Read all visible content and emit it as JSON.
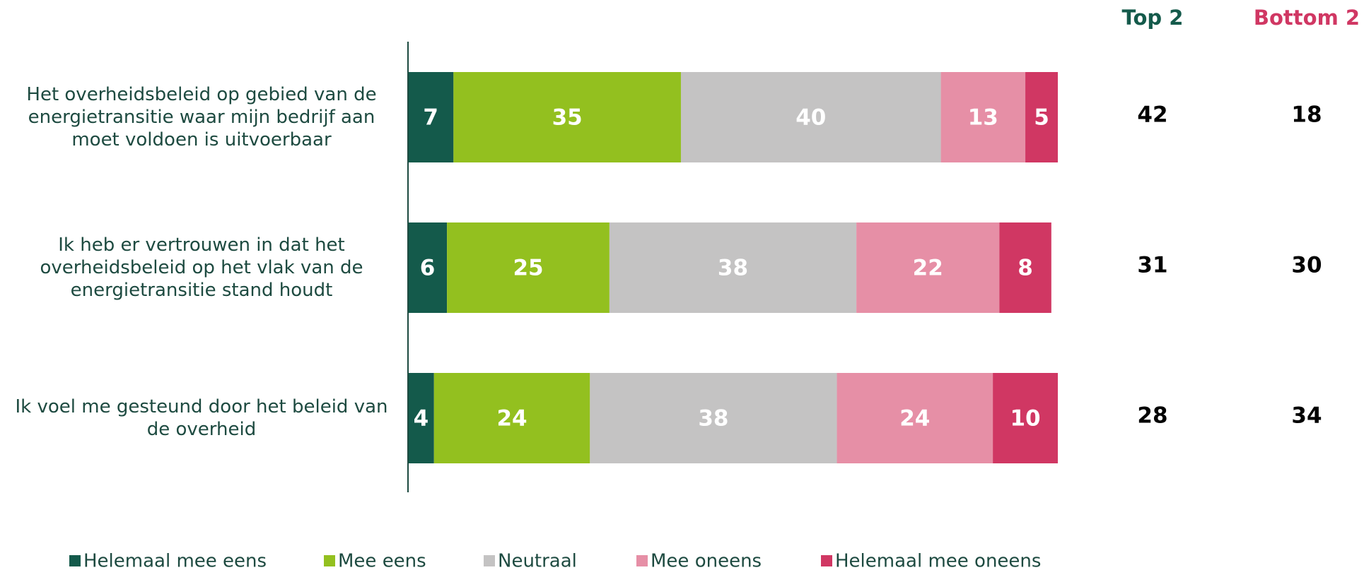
{
  "chart_data": {
    "type": "stacked_barh",
    "categories": [
      "Het overheidsbeleid op gebied van de energietransitie waar mijn bedrijf aan moet voldoen is uitvoerbaar",
      "Ik heb er vertrouwen in dat het overheidsbeleid op het vlak van de energietransitie stand houdt",
      "Ik voel me gesteund door het beleid van de overheid"
    ],
    "series": [
      {
        "name": "Helemaal mee eens",
        "color": "#145a4b",
        "values": [
          7,
          6,
          4
        ]
      },
      {
        "name": "Mee eens",
        "color": "#93c01f",
        "values": [
          35,
          25,
          24
        ]
      },
      {
        "name": "Neutraal",
        "color": "#c4c3c3",
        "values": [
          40,
          38,
          38
        ]
      },
      {
        "name": "Mee oneens",
        "color": "#e68fa6",
        "values": [
          13,
          22,
          24
        ]
      },
      {
        "name": "Helemaal mee oneens",
        "color": "#d03763",
        "values": [
          5,
          8,
          10
        ]
      }
    ],
    "xlim": [
      0,
      100
    ],
    "top2": {
      "title": "Top 2",
      "color": "#145a4b",
      "values": [
        42,
        31,
        28
      ]
    },
    "bottom2": {
      "title": "Bottom 2",
      "color": "#d03763",
      "values": [
        18,
        30,
        34
      ]
    }
  }
}
